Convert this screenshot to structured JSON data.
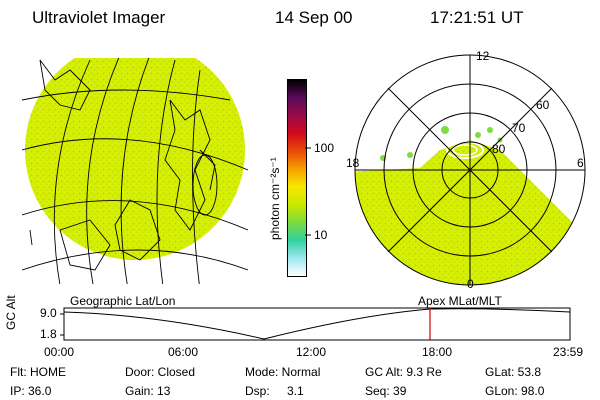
{
  "header": {
    "title": "Ultraviolet Imager",
    "date": "14 Sep 00",
    "time": "17:21:51 UT"
  },
  "colorbar": {
    "unit_label": "photon cm⁻²s⁻¹",
    "tick_high": "100",
    "tick_low": "10",
    "colors": [
      "#000000",
      "#5a0a5a",
      "#9a0a4a",
      "#d00a1a",
      "#e84a0a",
      "#f8a000",
      "#f8e800",
      "#c8e800",
      "#7cdc40",
      "#30d0a0",
      "#a0e8f0",
      "#ffffff"
    ]
  },
  "polar_plot": {
    "mlt_labels": {
      "top": "12",
      "left": "18",
      "right": "6",
      "bottom": "0"
    },
    "lat_labels": [
      "60",
      "70",
      "80"
    ]
  },
  "geo_panel_label": "Geographic Lat/Lon",
  "apex_panel_label": "Apex MLat/MLT",
  "altitude_plot": {
    "ylabel": "GC Alt",
    "y_ticks": [
      "9.0",
      "1.8"
    ],
    "x_ticks": [
      "00:00",
      "06:00",
      "12:00",
      "18:00",
      "23:59"
    ],
    "current_time_marker_hours": 17.36
  },
  "status": {
    "flt": "Flt: HOME",
    "door": "Door: Closed",
    "mode": "Mode: Normal",
    "gc_alt": "GC Alt: 9.3 Re",
    "glat": "GLat:  53.8",
    "ip": "IP: 36.0",
    "gain": "Gain: 13",
    "dsp_label": "Dsp:",
    "dsp_value": "3.1",
    "seq": "Seq: 39",
    "glon": "GLon:  98.0"
  },
  "style": {
    "image_fill": "#d8f000",
    "image_speckle": "#a8d82a"
  }
}
